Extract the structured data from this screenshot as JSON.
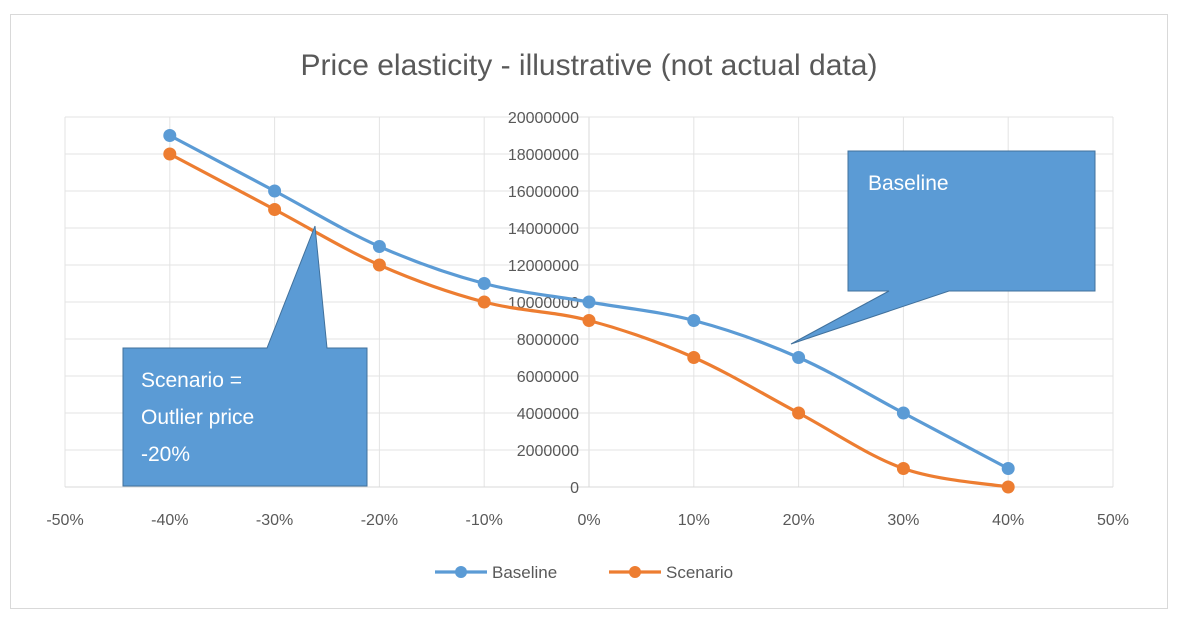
{
  "chart_data": {
    "type": "line",
    "title": "Price elasticity - illustrative (not actual data)",
    "x": [
      -40,
      -30,
      -20,
      -10,
      0,
      10,
      20,
      30,
      40
    ],
    "x_tick_labels": [
      "-50%",
      "-40%",
      "-30%",
      "-20%",
      "-10%",
      "0%",
      "10%",
      "20%",
      "30%",
      "40%",
      "50%"
    ],
    "y_tick_labels": [
      "0",
      "2000000",
      "4000000",
      "6000000",
      "8000000",
      "10000000",
      "12000000",
      "14000000",
      "16000000",
      "18000000",
      "20000000"
    ],
    "xlim": [
      -50,
      50
    ],
    "ylim": [
      0,
      20000000
    ],
    "grid": true,
    "smooth": true,
    "legend_position": "bottom",
    "series": [
      {
        "name": "Baseline",
        "color": "#5b9bd5",
        "values": [
          19000000,
          16000000,
          13000000,
          11000000,
          10000000,
          9000000,
          7000000,
          4000000,
          1000000
        ]
      },
      {
        "name": "Scenario",
        "color": "#ed7d31",
        "values": [
          18000000,
          15000000,
          12000000,
          10000000,
          9000000,
          7000000,
          4000000,
          1000000,
          0
        ]
      }
    ],
    "annotations": [
      {
        "lines": [
          "Scenario =",
          "Outlier price",
          "-20%"
        ],
        "color": "#5b9bd5"
      },
      {
        "lines": [
          "Baseline"
        ],
        "color": "#5b9bd5"
      }
    ]
  }
}
